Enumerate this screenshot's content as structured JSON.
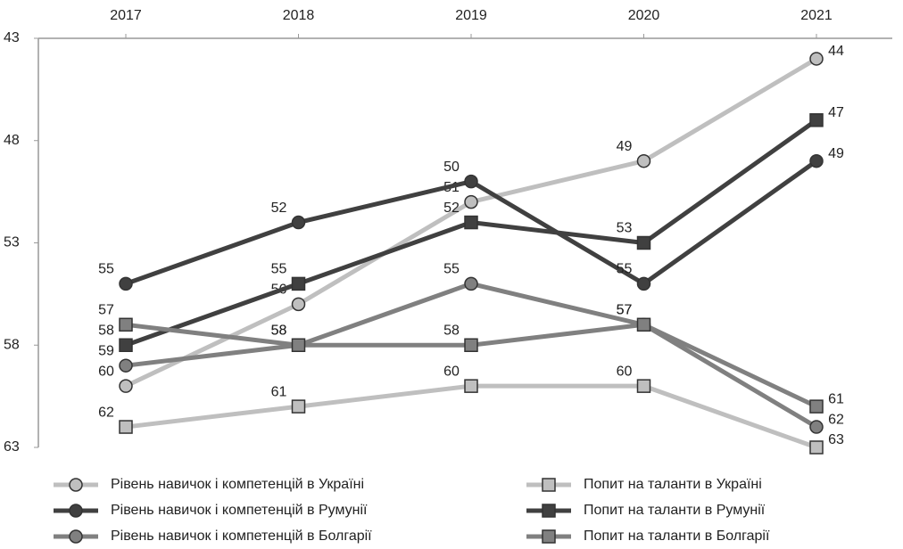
{
  "chart_data": {
    "type": "line",
    "categories": [
      "2017",
      "2018",
      "2019",
      "2020",
      "2021"
    ],
    "ylim": [
      43,
      63
    ],
    "yticks": [
      43,
      48,
      53,
      58,
      63
    ],
    "y_inverted": true,
    "grid": false,
    "series": [
      {
        "name": "Рівень навичок і компетенцій в Україні",
        "color": "#bfbfbf",
        "marker": "circle",
        "values": [
          60,
          56,
          51,
          49,
          44
        ]
      },
      {
        "name": "Попит на таланти в Україні",
        "color": "#bfbfbf",
        "marker": "square",
        "values": [
          62,
          61,
          60,
          60,
          63
        ]
      },
      {
        "name": "Рівень навичок і компетенцій в Румунії",
        "color": "#404040",
        "marker": "circle",
        "values": [
          55,
          52,
          50,
          55,
          49
        ]
      },
      {
        "name": "Попит на таланти в Румунії",
        "color": "#404040",
        "marker": "square",
        "values": [
          58,
          55,
          52,
          53,
          47
        ]
      },
      {
        "name": "Рівень навичок і компетенцій в Болгарії",
        "color": "#808080",
        "marker": "circle",
        "values": [
          59,
          58,
          55,
          57,
          62
        ]
      },
      {
        "name": "Попит на таланти в Болгарії",
        "color": "#808080",
        "marker": "square",
        "values": [
          57,
          58,
          58,
          57,
          61
        ]
      }
    ]
  }
}
